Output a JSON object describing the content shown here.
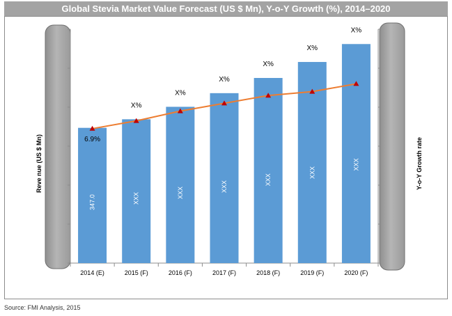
{
  "title": "Global Stevia Market Value Forecast (US $ Mn), Y-o-Y Growth (%), 2014–2020",
  "source": "Source: FMI Analysis, 2015",
  "colors": {
    "bar": "#5b9bd5",
    "line": "#ed7d31",
    "marker": "#c00000",
    "axis_pill": "#a6a6a6",
    "title_bar": "#a3a3a3"
  },
  "chart_data": {
    "type": "bar",
    "title": "Global Stevia Market Value Forecast (US $ Mn), Y-o-Y Growth (%), 2014–2020",
    "categories": [
      "2014 (E)",
      "2015 (F)",
      "2016 (F)",
      "2017 (F)",
      "2018 (F)",
      "2019 (F)",
      "2020 (F)"
    ],
    "series": [
      {
        "name": "Revenue (US $ Mn)",
        "type": "bar",
        "axis": "left",
        "values": [
          347.0,
          369,
          401,
          436,
          475,
          516,
          562
        ],
        "labels": [
          "347.0",
          "XXX",
          "XXX",
          "XXX",
          "XXX",
          "XXX",
          "XXX"
        ]
      },
      {
        "name": "Y-o-Y Growth rate",
        "type": "line",
        "axis": "right",
        "values": [
          6.9,
          7.3,
          7.8,
          8.2,
          8.6,
          8.8,
          9.2
        ],
        "labels": [
          "6.9%",
          "X%",
          "X%",
          "X%",
          "X%",
          "X%",
          "X%"
        ]
      }
    ],
    "ylabel": "Reve nue (US $ Mn)",
    "y2label": "Y-o-Y Growth rate",
    "ylim": [
      0,
      600
    ],
    "y2lim": [
      0,
      12
    ],
    "grid": false
  }
}
